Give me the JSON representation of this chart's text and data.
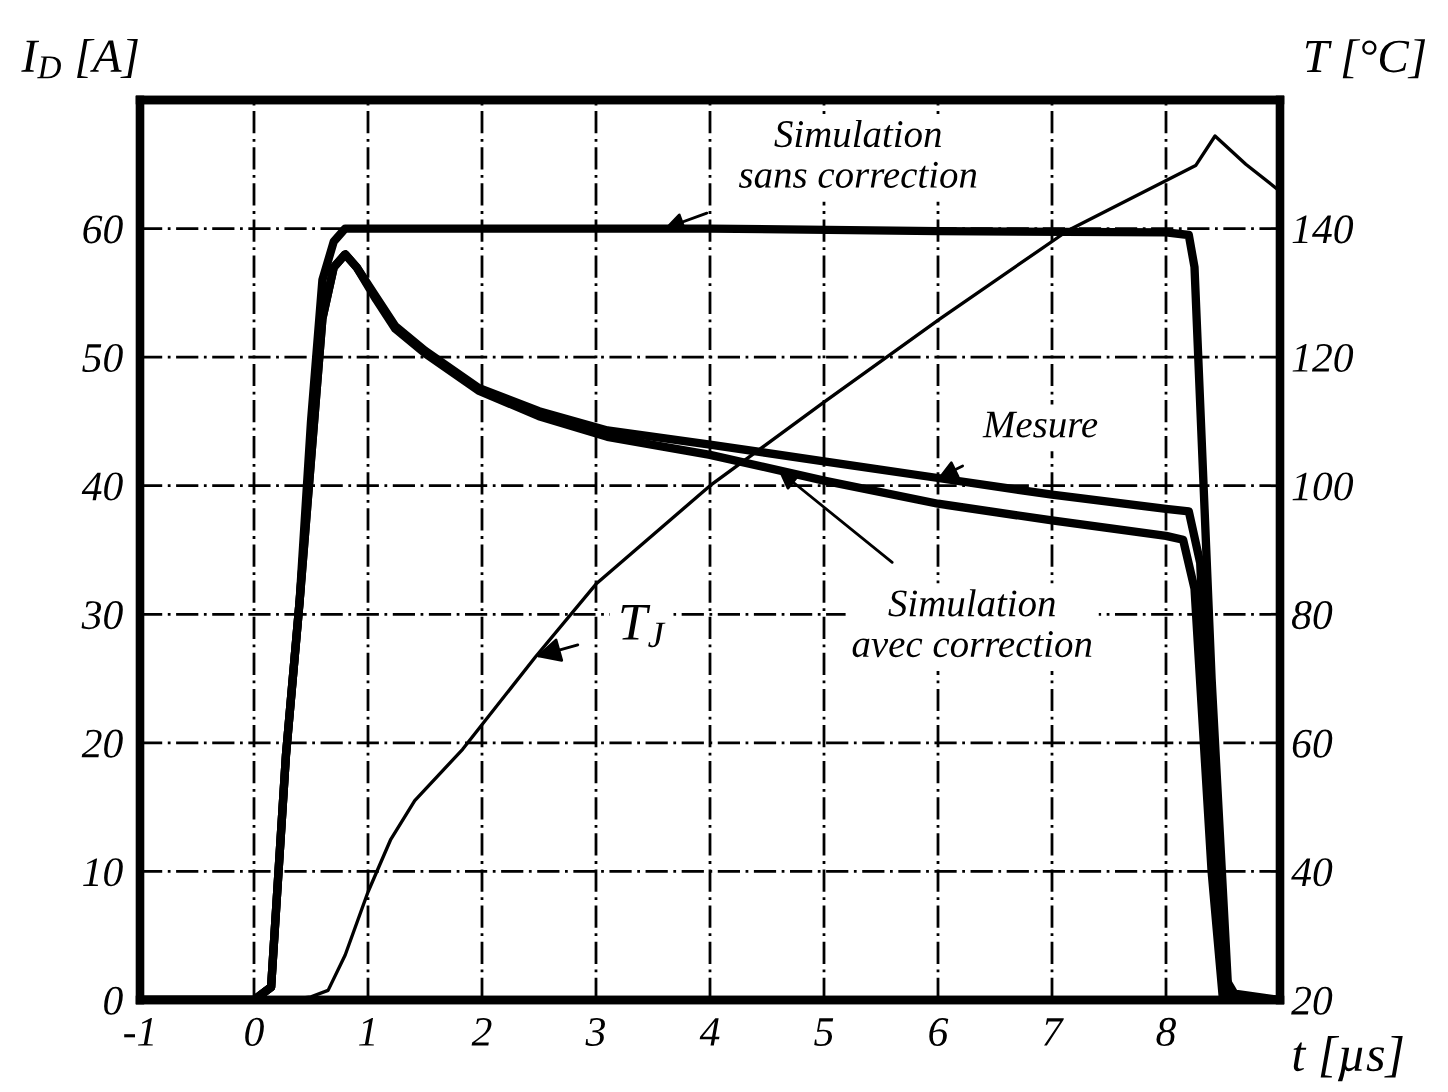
{
  "chart_data": {
    "type": "line",
    "xlabel": "t [µs]",
    "ylabel": "I$_{D}$ [A]",
    "y2label": "T [°C]",
    "xlim": [
      -1,
      9
    ],
    "xticks": [
      -1,
      0,
      1,
      2,
      3,
      4,
      5,
      6,
      7,
      8
    ],
    "ylim": [
      0,
      70
    ],
    "yticks": [
      0,
      10,
      20,
      30,
      40,
      50,
      60
    ],
    "y2lim": [
      20,
      160
    ],
    "y2ticks": [
      20,
      40,
      60,
      80,
      100,
      120,
      140
    ],
    "grid": true,
    "marker": "none",
    "line_style": "solid",
    "series": [
      {
        "name": "Simulation\nsans correction",
        "color": "#000000",
        "x": [
          -1,
          0,
          0.15,
          0.28,
          0.4,
          0.5,
          0.6,
          0.7,
          0.8,
          2,
          4,
          6,
          8,
          8.2,
          8.25,
          8.4,
          8.55,
          9
        ],
        "values": [
          0,
          0,
          1,
          19,
          31,
          45,
          56,
          59,
          60,
          60,
          60,
          59.8,
          59.7,
          59.5,
          57,
          25,
          0,
          0
        ]
      },
      {
        "name": "Mesure",
        "color": "#000000",
        "x": [
          -1,
          0,
          0.15,
          0.28,
          0.4,
          0.5,
          0.6,
          0.7,
          0.8,
          0.9,
          1.07,
          1.24,
          1.5,
          1.97,
          2.5,
          3.1,
          4,
          5,
          6,
          7,
          8,
          8.2,
          8.3,
          8.4,
          8.5,
          8.6,
          9
        ],
        "values": [
          0,
          0,
          1,
          19,
          31,
          42,
          53,
          57,
          58,
          57,
          54.7,
          52.4,
          50.5,
          47.6,
          45.8,
          44.3,
          43.2,
          41.9,
          40.6,
          39.3,
          38.2,
          38,
          34,
          15,
          2,
          0.5,
          0
        ]
      },
      {
        "name": "Simulation\navec correction",
        "color": "#000000",
        "x": [
          -1,
          0,
          0.15,
          0.28,
          0.4,
          0.5,
          0.6,
          0.7,
          0.8,
          0.9,
          1.07,
          1.24,
          1.5,
          1.97,
          2.5,
          3.1,
          4,
          5,
          6,
          7,
          8,
          8.15,
          8.25,
          8.4,
          8.5,
          9
        ],
        "values": [
          0,
          0,
          1,
          19,
          31,
          42,
          53,
          57,
          58,
          57,
          54.5,
          52.2,
          50.3,
          47.4,
          45.4,
          43.8,
          42.4,
          40.4,
          38.6,
          37.3,
          36.1,
          35.8,
          32,
          10,
          0,
          0
        ]
      },
      {
        "name": "T$_{J}$",
        "color": "#000000",
        "axis": "y2",
        "x": [
          -1,
          0,
          0.3,
          0.5,
          0.65,
          0.8,
          1.0,
          1.2,
          1.41,
          1.83,
          2.47,
          3.0,
          4.0,
          5.0,
          6.02,
          7.14,
          8.26,
          8.43,
          8.7,
          9
        ],
        "values": [
          20,
          20,
          20,
          20.5,
          21.5,
          27,
          36.8,
          45,
          51,
          59,
          73.4,
          84.7,
          100,
          113,
          126,
          139.7,
          149.8,
          154.4,
          150,
          145.8
        ]
      }
    ]
  }
}
